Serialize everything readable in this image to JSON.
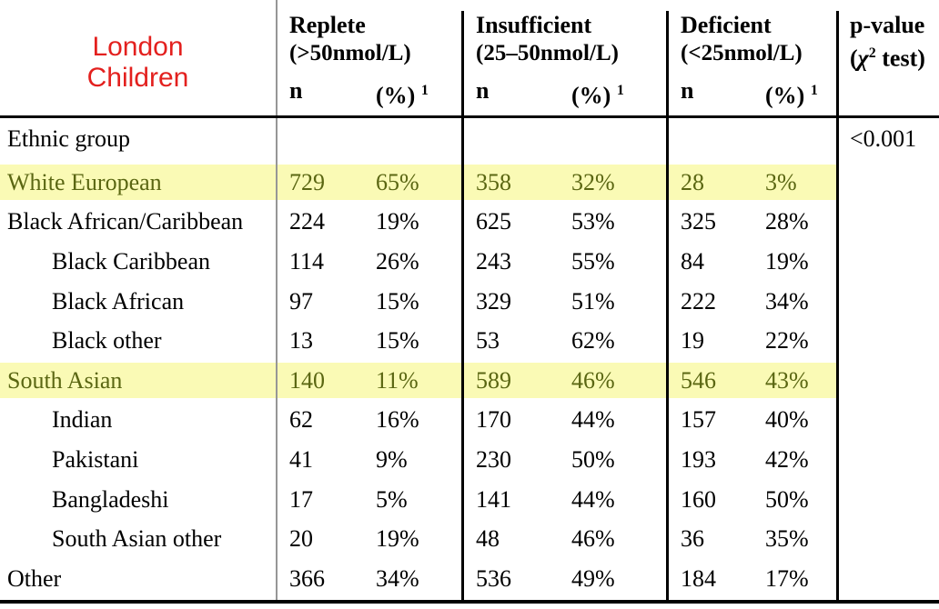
{
  "colors": {
    "accent_red": "#e3201e",
    "highlight_yellow": "#fafab5",
    "highlight_text": "#5a6612",
    "grid_gray": "#969696",
    "line_black": "#000000"
  },
  "header": {
    "title": "London Children",
    "stat_cols": [
      {
        "name": "Replete",
        "range": "(>50nmol/L)",
        "n_label": "n",
        "pct_label": "(%)",
        "footnote": "1"
      },
      {
        "name": "Insufficient",
        "range": "(25–50nmol/L)",
        "n_label": "n",
        "pct_label": "(%)",
        "footnote": "1"
      },
      {
        "name": "Deficient",
        "range": "(<25nmol/L)",
        "n_label": "n",
        "pct_label": "(%)",
        "footnote": "1"
      }
    ],
    "pvalue_col": {
      "line1": "p-value",
      "chi_pre": "(",
      "chi": "χ",
      "chi_sup": "2",
      "chi_post": " test)"
    }
  },
  "rows": [
    {
      "label": "Ethnic group",
      "indent": false,
      "highlight": false,
      "replete_n": "",
      "replete_pct": "",
      "insufficient_n": "",
      "insufficient_pct": "",
      "deficient_n": "",
      "deficient_pct": "",
      "p_value": "<0.001"
    },
    {
      "label": "White European",
      "indent": false,
      "highlight": true,
      "replete_n": "729",
      "replete_pct": "65%",
      "insufficient_n": "358",
      "insufficient_pct": "32%",
      "deficient_n": "28",
      "deficient_pct": "3%",
      "p_value": ""
    },
    {
      "label": "Black African/Caribbean",
      "indent": false,
      "highlight": false,
      "replete_n": "224",
      "replete_pct": "19%",
      "insufficient_n": "625",
      "insufficient_pct": "53%",
      "deficient_n": "325",
      "deficient_pct": "28%",
      "p_value": ""
    },
    {
      "label": "Black Caribbean",
      "indent": true,
      "highlight": false,
      "replete_n": "114",
      "replete_pct": "26%",
      "insufficient_n": "243",
      "insufficient_pct": "55%",
      "deficient_n": "84",
      "deficient_pct": "19%",
      "p_value": ""
    },
    {
      "label": "Black African",
      "indent": true,
      "highlight": false,
      "replete_n": "97",
      "replete_pct": "15%",
      "insufficient_n": "329",
      "insufficient_pct": "51%",
      "deficient_n": "222",
      "deficient_pct": "34%",
      "p_value": ""
    },
    {
      "label": "Black other",
      "indent": true,
      "highlight": false,
      "replete_n": "13",
      "replete_pct": "15%",
      "insufficient_n": "53",
      "insufficient_pct": "62%",
      "deficient_n": "19",
      "deficient_pct": "22%",
      "p_value": ""
    },
    {
      "label": "South Asian",
      "indent": false,
      "highlight": true,
      "replete_n": "140",
      "replete_pct": "11%",
      "insufficient_n": "589",
      "insufficient_pct": "46%",
      "deficient_n": "546",
      "deficient_pct": "43%",
      "p_value": ""
    },
    {
      "label": "Indian",
      "indent": true,
      "highlight": false,
      "replete_n": "62",
      "replete_pct": "16%",
      "insufficient_n": "170",
      "insufficient_pct": "44%",
      "deficient_n": "157",
      "deficient_pct": "40%",
      "p_value": ""
    },
    {
      "label": "Pakistani",
      "indent": true,
      "highlight": false,
      "replete_n": "41",
      "replete_pct": "9%",
      "insufficient_n": "230",
      "insufficient_pct": "50%",
      "deficient_n": "193",
      "deficient_pct": "42%",
      "p_value": ""
    },
    {
      "label": "Bangladeshi",
      "indent": true,
      "highlight": false,
      "replete_n": "17",
      "replete_pct": "5%",
      "insufficient_n": "141",
      "insufficient_pct": "44%",
      "deficient_n": "160",
      "deficient_pct": "50%",
      "p_value": ""
    },
    {
      "label": "South Asian other",
      "indent": true,
      "highlight": false,
      "replete_n": "20",
      "replete_pct": "19%",
      "insufficient_n": "48",
      "insufficient_pct": "46%",
      "deficient_n": "36",
      "deficient_pct": "35%",
      "p_value": ""
    },
    {
      "label": "Other",
      "indent": false,
      "highlight": false,
      "replete_n": "366",
      "replete_pct": "34%",
      "insufficient_n": "536",
      "insufficient_pct": "49%",
      "deficient_n": "184",
      "deficient_pct": "17%",
      "p_value": ""
    }
  ]
}
